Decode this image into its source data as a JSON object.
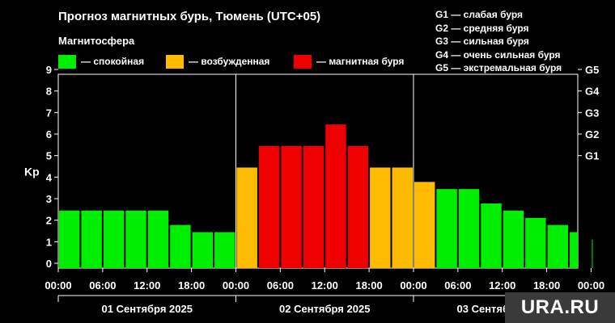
{
  "header": {
    "title": "Прогноз магнитных бурь, Тюмень (UTC+05)",
    "subtitle": "Магнитосфера"
  },
  "legend": [
    {
      "label": "— спокойная",
      "color": "#00ee00"
    },
    {
      "label": "— возбужденная",
      "color": "#ffbb00"
    },
    {
      "label": "— магнитная буря",
      "color": "#ee0000"
    }
  ],
  "g_scale_notes": [
    "G1 — слабая буря",
    "G2 — средняя буря",
    "G3 — сильная буря",
    "G4 — очень сильная буря",
    "G5 — экстремальная буря"
  ],
  "watermark": "URA.RU",
  "chart_data": {
    "type": "bar",
    "ylabel": "Kp",
    "ylim": [
      0,
      9
    ],
    "y_ticks": [
      "0",
      "1",
      "2",
      "3",
      "4",
      "5",
      "6",
      "7",
      "8",
      "9"
    ],
    "right_axis_ticks": [
      {
        "label": "G1",
        "kp": 5
      },
      {
        "label": "G2",
        "kp": 6
      },
      {
        "label": "G3",
        "kp": 7
      },
      {
        "label": "G4",
        "kp": 8
      },
      {
        "label": "G5",
        "kp": 9
      }
    ],
    "x_tick_labels": [
      "00:00",
      "06:00",
      "12:00",
      "18:00",
      "00:00",
      "06:00",
      "12:00",
      "18:00",
      "00:00",
      "06:00",
      "12:00",
      "18:00",
      "00:00"
    ],
    "days": [
      "01 Сентября 2025",
      "02 Сентября 2025",
      "03 Сентября 2025"
    ],
    "bar_interval_hours": 3,
    "values": [
      2.67,
      2.67,
      2.67,
      2.67,
      2.67,
      2.0,
      1.67,
      1.67,
      4.67,
      5.67,
      5.67,
      5.67,
      6.67,
      5.67,
      4.67,
      4.67,
      4.0,
      3.67,
      3.67,
      3.0,
      2.67,
      2.33,
      2.0,
      1.67,
      1.33
    ],
    "level_colors": {
      "quiet": "#00ee00",
      "active": "#ffbb00",
      "storm": "#ee0000"
    },
    "grid": false
  }
}
